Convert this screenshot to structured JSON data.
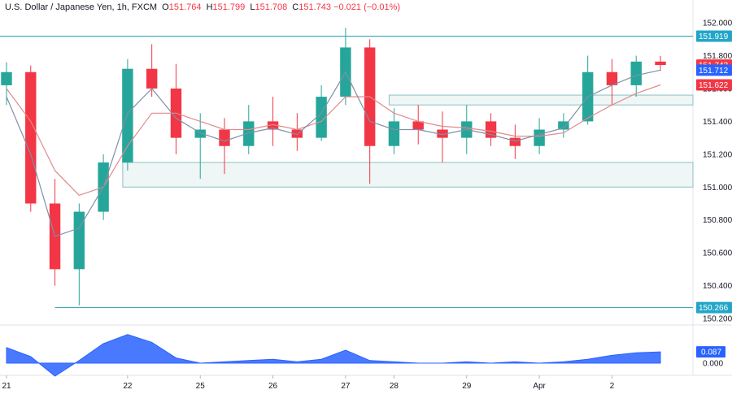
{
  "header": {
    "symbol_title": "U.S. Dollar / Japanese Yen, 1h, FXCM",
    "ohlc": [
      {
        "key": "O",
        "value": "151.764"
      },
      {
        "key": "H",
        "value": "151.799"
      },
      {
        "key": "L",
        "value": "151.708"
      },
      {
        "key": "C",
        "value": "151.743"
      }
    ],
    "change": "−0.021 (−0.01%)"
  },
  "colors": {
    "up": "#26a69a",
    "down": "#f23645",
    "ma_fast": "#7f8fa6",
    "ma_slow": "#e08a8a",
    "level_line": "#26a0b4",
    "zone_fill": "#eef6f6",
    "zone_border": "#8fbfc4",
    "oscillator": "#2962ff",
    "tag_cyan": "#22a6c8",
    "tag_red": "#f23645",
    "tag_blue": "#2962ff"
  },
  "price_axis": {
    "ticks": [
      "152.000",
      "151.800",
      "151.600",
      "151.400",
      "151.200",
      "151.000",
      "150.800",
      "150.600",
      "150.400",
      "150.200"
    ],
    "tags": [
      {
        "label": "151.919",
        "color": "tag_cyan",
        "value": 151.919
      },
      {
        "label": "151.743",
        "color": "tag_red",
        "value": 151.743
      },
      {
        "label": "151.712",
        "color": "tag_blue",
        "value": 151.712
      },
      {
        "label": "151.622",
        "color": "tag_red",
        "value": 151.622
      },
      {
        "label": "150.266",
        "color": "tag_cyan",
        "value": 150.266
      }
    ]
  },
  "time_axis": {
    "labels": [
      "21",
      "22",
      "25",
      "26",
      "27",
      "28",
      "29",
      "Apr",
      "2"
    ]
  },
  "oscillator": {
    "ticks": [
      "0.000"
    ],
    "tag": "0.087",
    "current": 0.087
  },
  "chart_data": {
    "type": "candlestick",
    "timeframe": "1h",
    "ylim": [
      150.2,
      152.05
    ],
    "levels": [
      {
        "value": 151.919,
        "style": "horizontal line"
      },
      {
        "value": 150.266,
        "style": "horizontal line"
      }
    ],
    "zones": [
      {
        "from": 151.0,
        "to": 151.15,
        "start": "22"
      },
      {
        "from": 151.5,
        "to": 151.56,
        "start": "28"
      }
    ],
    "candles": [
      {
        "date": "21",
        "open": 151.62,
        "high": 151.76,
        "low": 151.5,
        "close": 151.7
      },
      {
        "date": "21",
        "open": 151.7,
        "high": 151.74,
        "low": 150.85,
        "close": 150.9
      },
      {
        "date": "21",
        "open": 150.9,
        "high": 151.05,
        "low": 150.4,
        "close": 150.5
      },
      {
        "date": "21",
        "open": 150.5,
        "high": 150.9,
        "low": 150.28,
        "close": 150.85
      },
      {
        "date": "21",
        "open": 150.85,
        "high": 151.2,
        "low": 150.8,
        "close": 151.15
      },
      {
        "date": "22",
        "open": 151.15,
        "high": 151.78,
        "low": 151.1,
        "close": 151.72
      },
      {
        "date": "22",
        "open": 151.72,
        "high": 151.87,
        "low": 151.55,
        "close": 151.6
      },
      {
        "date": "22",
        "open": 151.6,
        "high": 151.75,
        "low": 151.2,
        "close": 151.3
      },
      {
        "date": "25",
        "open": 151.3,
        "high": 151.45,
        "low": 151.05,
        "close": 151.35
      },
      {
        "date": "25",
        "open": 151.35,
        "high": 151.42,
        "low": 151.08,
        "close": 151.25
      },
      {
        "date": "25",
        "open": 151.25,
        "high": 151.5,
        "low": 151.2,
        "close": 151.4
      },
      {
        "date": "26",
        "open": 151.4,
        "high": 151.55,
        "low": 151.25,
        "close": 151.35
      },
      {
        "date": "26",
        "open": 151.35,
        "high": 151.45,
        "low": 151.22,
        "close": 151.3
      },
      {
        "date": "26",
        "open": 151.3,
        "high": 151.62,
        "low": 151.28,
        "close": 151.55
      },
      {
        "date": "27",
        "open": 151.55,
        "high": 151.97,
        "low": 151.5,
        "close": 151.85
      },
      {
        "date": "27",
        "open": 151.85,
        "high": 151.9,
        "low": 151.02,
        "close": 151.25
      },
      {
        "date": "28",
        "open": 151.25,
        "high": 151.48,
        "low": 151.2,
        "close": 151.4
      },
      {
        "date": "28",
        "open": 151.4,
        "high": 151.5,
        "low": 151.26,
        "close": 151.35
      },
      {
        "date": "28",
        "open": 151.35,
        "high": 151.46,
        "low": 151.15,
        "close": 151.3
      },
      {
        "date": "29",
        "open": 151.3,
        "high": 151.5,
        "low": 151.2,
        "close": 151.4
      },
      {
        "date": "29",
        "open": 151.4,
        "high": 151.45,
        "low": 151.25,
        "close": 151.3
      },
      {
        "date": "29",
        "open": 151.3,
        "high": 151.38,
        "low": 151.17,
        "close": 151.25
      },
      {
        "date": "Apr",
        "open": 151.25,
        "high": 151.42,
        "low": 151.2,
        "close": 151.35
      },
      {
        "date": "Apr",
        "open": 151.35,
        "high": 151.45,
        "low": 151.3,
        "close": 151.4
      },
      {
        "date": "Apr",
        "open": 151.4,
        "high": 151.8,
        "low": 151.38,
        "close": 151.7
      },
      {
        "date": "2",
        "open": 151.7,
        "high": 151.78,
        "low": 151.5,
        "close": 151.62
      },
      {
        "date": "2",
        "open": 151.62,
        "high": 151.8,
        "low": 151.55,
        "close": 151.764
      },
      {
        "date": "2",
        "open": 151.764,
        "high": 151.799,
        "low": 151.708,
        "close": 151.743
      }
    ],
    "ma_fast": [
      151.55,
      151.2,
      150.7,
      150.75,
      151.0,
      151.45,
      151.6,
      151.42,
      151.33,
      151.28,
      151.33,
      151.36,
      151.32,
      151.45,
      151.7,
      151.4,
      151.35,
      151.35,
      151.32,
      151.35,
      151.32,
      151.28,
      151.32,
      151.36,
      151.55,
      151.62,
      151.68,
      151.712
    ],
    "ma_slow": [
      151.6,
      151.4,
      151.1,
      150.95,
      151.0,
      151.25,
      151.45,
      151.45,
      151.4,
      151.35,
      151.35,
      151.38,
      151.35,
      151.4,
      151.55,
      151.55,
      151.45,
      151.4,
      151.37,
      151.36,
      151.34,
      151.31,
      151.31,
      151.33,
      151.42,
      151.5,
      151.57,
      151.622
    ],
    "oscillator_values": [
      0.12,
      0.05,
      -0.1,
      0.02,
      0.15,
      0.22,
      0.16,
      0.04,
      0.0,
      0.01,
      0.02,
      0.03,
      0.01,
      0.03,
      0.1,
      0.02,
      0.01,
      0.0,
      0.0,
      0.01,
      0.0,
      0.01,
      0.0,
      0.01,
      0.03,
      0.06,
      0.08,
      0.087
    ]
  }
}
